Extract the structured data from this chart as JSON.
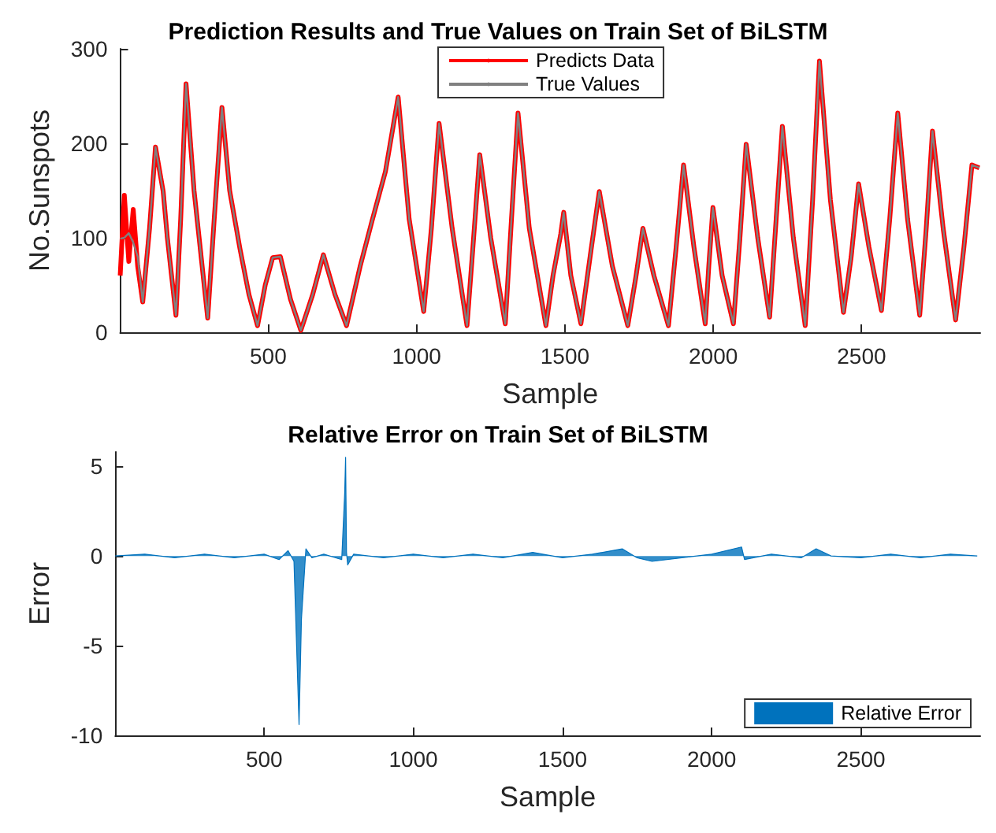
{
  "chart_data": [
    {
      "type": "line",
      "title": "Prediction Results and True Values on Train Set of BiLSTM",
      "xlabel": "Sample",
      "ylabel": "No.Sunspots",
      "legend": "top",
      "grid": false,
      "xlim": [
        1,
        2900
      ],
      "xticks": [
        500,
        1000,
        1500,
        2000,
        2500
      ],
      "ylim": [
        0,
        300
      ],
      "yticks": [
        0,
        100,
        200,
        300
      ],
      "x": [
        1,
        15,
        30,
        45,
        60,
        77,
        100,
        120,
        146,
        160,
        189,
        205,
        223,
        250,
        296,
        318,
        344,
        370,
        405,
        435,
        464,
        490,
        515,
        541,
        575,
        610,
        650,
        686,
        725,
        764,
        810,
        850,
        895,
        938,
        975,
        1024,
        1050,
        1076,
        1120,
        1170,
        1190,
        1213,
        1250,
        1299,
        1320,
        1342,
        1380,
        1436,
        1460,
        1486,
        1496,
        1520,
        1554,
        1585,
        1616,
        1660,
        1712,
        1740,
        1763,
        1800,
        1849,
        1875,
        1900,
        1935,
        1973,
        1985,
        1999,
        2030,
        2068,
        2090,
        2111,
        2150,
        2190,
        2210,
        2233,
        2270,
        2310,
        2335,
        2358,
        2395,
        2439,
        2465,
        2490,
        2525,
        2567,
        2595,
        2622,
        2655,
        2696,
        2718,
        2739,
        2775,
        2817,
        2845,
        2872,
        2897
      ],
      "series": [
        {
          "name": "Predicts Data",
          "color": "#ff0000",
          "values": [
            60,
            145,
            75,
            130,
            70,
            32,
            110,
            196,
            149,
            100,
            18,
            120,
            263,
            150,
            15,
            120,
            238,
            150,
            88,
            40,
            7,
            50,
            79,
            80,
            35,
            2,
            40,
            82,
            40,
            7,
            70,
            118,
            170,
            249,
            120,
            22,
            110,
            221,
            110,
            7,
            90,
            188,
            100,
            9,
            120,
            232,
            110,
            7,
            60,
            104,
            127,
            60,
            9,
            80,
            149,
            70,
            7,
            60,
            110,
            60,
            7,
            90,
            177,
            90,
            9,
            70,
            132,
            60,
            9,
            100,
            199,
            100,
            16,
            110,
            218,
            100,
            7,
            140,
            287,
            140,
            21,
            80,
            157,
            90,
            23,
            120,
            232,
            120,
            18,
            110,
            213,
            110,
            13,
            90,
            177,
            174
          ]
        },
        {
          "name": "True Values",
          "color": "#808080",
          "values": [
            99,
            100,
            105,
            95,
            80,
            32,
            110,
            196,
            149,
            100,
            18,
            120,
            263,
            150,
            15,
            120,
            238,
            150,
            88,
            40,
            7,
            50,
            79,
            80,
            35,
            2,
            40,
            82,
            40,
            7,
            70,
            118,
            170,
            249,
            120,
            22,
            110,
            221,
            110,
            7,
            90,
            188,
            100,
            9,
            120,
            232,
            110,
            7,
            60,
            104,
            127,
            60,
            9,
            80,
            149,
            70,
            7,
            60,
            110,
            60,
            7,
            90,
            177,
            90,
            9,
            70,
            132,
            60,
            9,
            100,
            199,
            100,
            16,
            110,
            218,
            100,
            7,
            140,
            287,
            140,
            21,
            80,
            157,
            90,
            23,
            120,
            232,
            120,
            18,
            110,
            213,
            110,
            13,
            90,
            177,
            174
          ]
        }
      ]
    },
    {
      "type": "area",
      "title": "Relative Error on Train Set of BiLSTM",
      "xlabel": "Sample",
      "ylabel": "Error",
      "legend": "bottom right",
      "grid": false,
      "xlim": [
        1,
        2900
      ],
      "xticks": [
        500,
        1000,
        1500,
        2000,
        2500
      ],
      "ylim": [
        -10,
        5.8
      ],
      "yticks": [
        -10,
        -5,
        0,
        5
      ],
      "x": [
        1,
        100,
        200,
        300,
        400,
        500,
        550,
        580,
        600,
        617,
        625,
        640,
        660,
        700,
        760,
        770,
        773,
        776,
        780,
        800,
        900,
        1000,
        1100,
        1200,
        1300,
        1400,
        1500,
        1600,
        1700,
        1750,
        1800,
        1900,
        2000,
        2100,
        2110,
        2200,
        2300,
        2350,
        2400,
        2500,
        2600,
        2700,
        2800,
        2890
      ],
      "series": [
        {
          "name": "Relative Error",
          "color": "#0072bd",
          "values": [
            0,
            0.1,
            -0.1,
            0.1,
            -0.1,
            0.1,
            -0.2,
            0.3,
            -0.3,
            -9.4,
            -3.5,
            0.4,
            -0.1,
            0.1,
            -0.2,
            3.5,
            5.5,
            0.2,
            -0.5,
            0.1,
            -0.1,
            0.1,
            -0.1,
            0.1,
            -0.1,
            0.2,
            -0.1,
            0.1,
            0.4,
            -0.1,
            -0.3,
            -0.1,
            0.1,
            0.5,
            -0.2,
            0.1,
            -0.1,
            0.4,
            0,
            -0.1,
            0.1,
            -0.1,
            0.1,
            0
          ]
        }
      ]
    }
  ]
}
